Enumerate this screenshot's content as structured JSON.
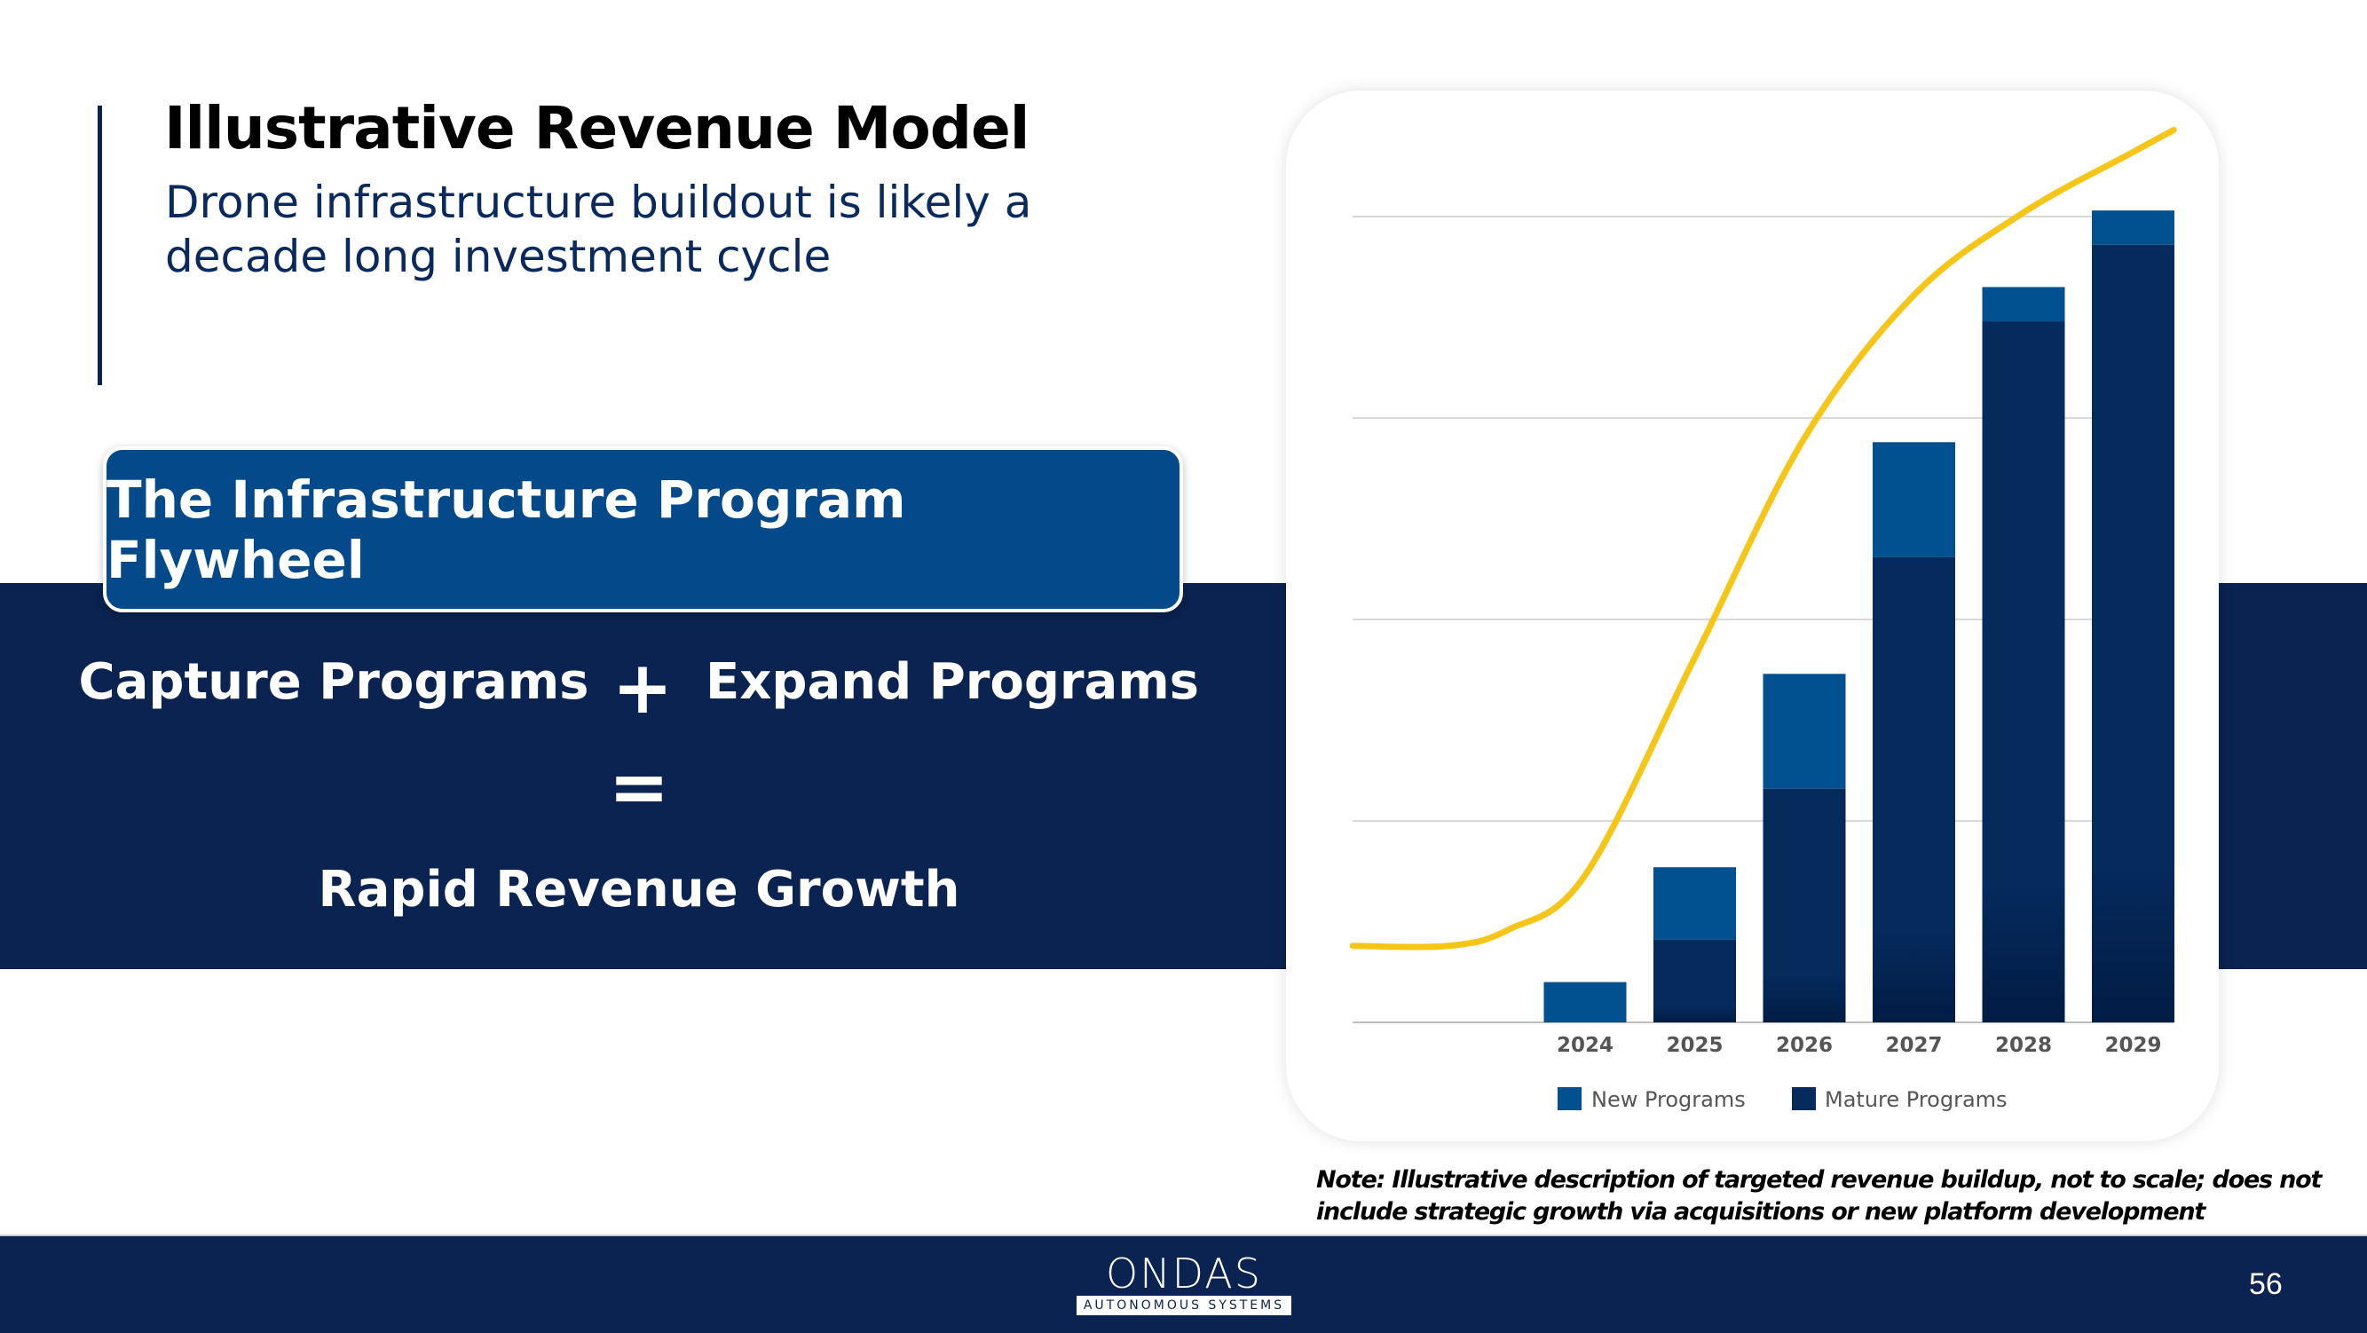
{
  "header": {
    "title": "Illustrative Revenue Model",
    "subtitle": "Drone infrastructure buildout is likely a decade long investment cycle"
  },
  "flywheel": {
    "title": "The Infrastructure Program Flywheel",
    "left": "Capture Programs",
    "plus": "+",
    "right": "Expand Programs",
    "equals": "=",
    "result": "Rapid Revenue Growth"
  },
  "colors": {
    "navy": "#0b2350",
    "new_programs": "#01508f",
    "mature_programs": "#052a5c",
    "curve": "#f5c518"
  },
  "chart_data": {
    "type": "bar",
    "stacked": true,
    "categories": [
      "2024",
      "2025",
      "2026",
      "2027",
      "2028",
      "2029"
    ],
    "series": [
      {
        "name": "Mature Programs",
        "values": [
          0,
          0.41,
          1.16,
          2.31,
          3.48,
          3.86
        ]
      },
      {
        "name": "New Programs",
        "values": [
          0.2,
          0.36,
          0.57,
          0.57,
          0.17,
          0.17
        ]
      }
    ],
    "overlay_line": {
      "points": [
        [
          2021.88,
          0.38
        ],
        [
          2022.76,
          0.38
        ],
        [
          2023.3,
          0.46
        ],
        [
          2024,
          0.73
        ],
        [
          2025,
          1.81
        ],
        [
          2026,
          2.9
        ],
        [
          2027,
          3.61
        ],
        [
          2028,
          4.02
        ],
        [
          2029,
          4.32
        ],
        [
          2029.37,
          4.43
        ]
      ]
    },
    "ylim": [
      0,
      4.5
    ],
    "gridlines": [
      1,
      2,
      3,
      4
    ],
    "y_tick_labels": false,
    "grid": true,
    "legend": "bottom"
  },
  "note": "Note: Illustrative description of targeted revenue buildup, not to scale; does not include strategic growth via acquisitions or new platform development",
  "footer": {
    "logo_word": "ONDAS",
    "logo_sub": "AUTONOMOUS SYSTEMS",
    "page_number": "56"
  }
}
